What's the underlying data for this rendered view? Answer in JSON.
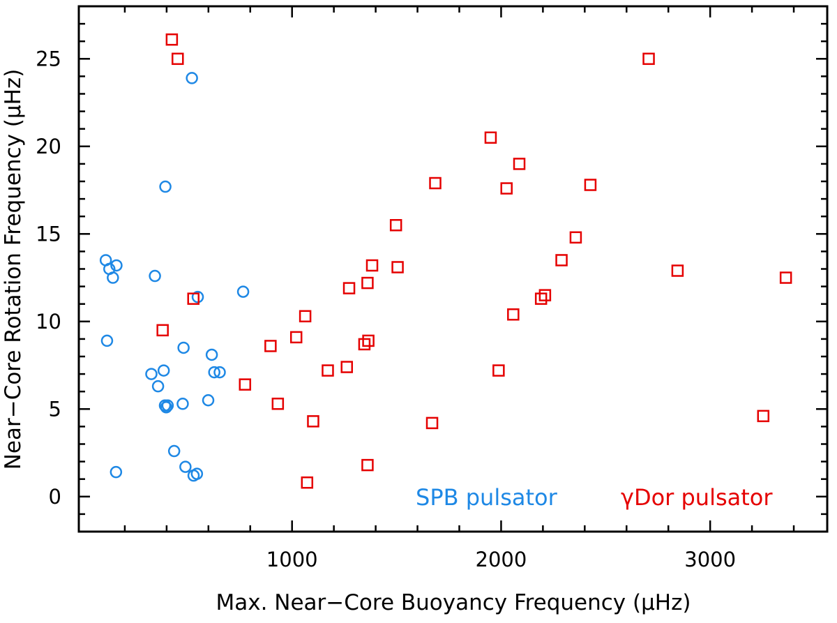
{
  "chart_data": {
    "type": "scatter",
    "xlabel": "Max. Near−Core Buoyancy Frequency (μHz)",
    "ylabel": "Near−Core Rotation Frequency (μHz)",
    "xlim": [
      -20,
      3560
    ],
    "ylim": [
      -2,
      28
    ],
    "x_ticks": [
      1000,
      2000,
      3000
    ],
    "y_ticks": [
      0,
      5,
      10,
      15,
      20,
      25
    ],
    "x_tick_labels": [
      "1000",
      "2000",
      "3000"
    ],
    "y_tick_labels": [
      "0",
      "5",
      "10",
      "15",
      "20",
      "25"
    ],
    "grid": false,
    "series": [
      {
        "name": "SPB pulsator",
        "marker": "circle",
        "color": "#1e88e5",
        "points": [
          [
            109,
            13.5
          ],
          [
            126,
            13.0
          ],
          [
            160,
            13.2
          ],
          [
            143,
            12.5
          ],
          [
            115,
            8.9
          ],
          [
            158,
            1.4
          ],
          [
            344,
            12.6
          ],
          [
            327,
            7.0
          ],
          [
            359,
            6.3
          ],
          [
            386,
            7.2
          ],
          [
            394,
            17.7
          ],
          [
            392,
            5.2
          ],
          [
            398,
            5.1
          ],
          [
            405,
            5.2
          ],
          [
            436,
            2.6
          ],
          [
            477,
            5.3
          ],
          [
            481,
            8.5
          ],
          [
            490,
            1.7
          ],
          [
            521,
            23.9
          ],
          [
            529,
            1.2
          ],
          [
            549,
            11.4
          ],
          [
            545,
            1.3
          ],
          [
            599,
            5.5
          ],
          [
            616,
            8.1
          ],
          [
            628,
            7.1
          ],
          [
            654,
            7.1
          ],
          [
            766,
            11.7
          ]
        ]
      },
      {
        "name": "γDor pulsator",
        "marker": "square",
        "color": "#e50000",
        "points": [
          [
            425,
            26.1
          ],
          [
            453,
            25.0
          ],
          [
            528,
            11.3
          ],
          [
            381,
            9.5
          ],
          [
            775,
            6.4
          ],
          [
            897,
            8.6
          ],
          [
            932,
            5.3
          ],
          [
            1020,
            9.1
          ],
          [
            1063,
            10.3
          ],
          [
            1072,
            0.8
          ],
          [
            1101,
            4.3
          ],
          [
            1171,
            7.2
          ],
          [
            1262,
            7.4
          ],
          [
            1273,
            11.9
          ],
          [
            1346,
            8.7
          ],
          [
            1361,
            1.8
          ],
          [
            1361,
            12.2
          ],
          [
            1365,
            8.9
          ],
          [
            1383,
            13.2
          ],
          [
            1497,
            15.5
          ],
          [
            1505,
            13.1
          ],
          [
            1670,
            4.2
          ],
          [
            1685,
            17.9
          ],
          [
            1950,
            20.5
          ],
          [
            1988,
            7.2
          ],
          [
            2026,
            17.6
          ],
          [
            2058,
            10.4
          ],
          [
            2087,
            19.0
          ],
          [
            2191,
            11.3
          ],
          [
            2210,
            11.5
          ],
          [
            2289,
            13.5
          ],
          [
            2357,
            14.8
          ],
          [
            2427,
            17.8
          ],
          [
            2706,
            25.0
          ],
          [
            2844,
            12.9
          ],
          [
            3254,
            4.6
          ],
          [
            3362,
            12.5
          ]
        ]
      }
    ]
  }
}
